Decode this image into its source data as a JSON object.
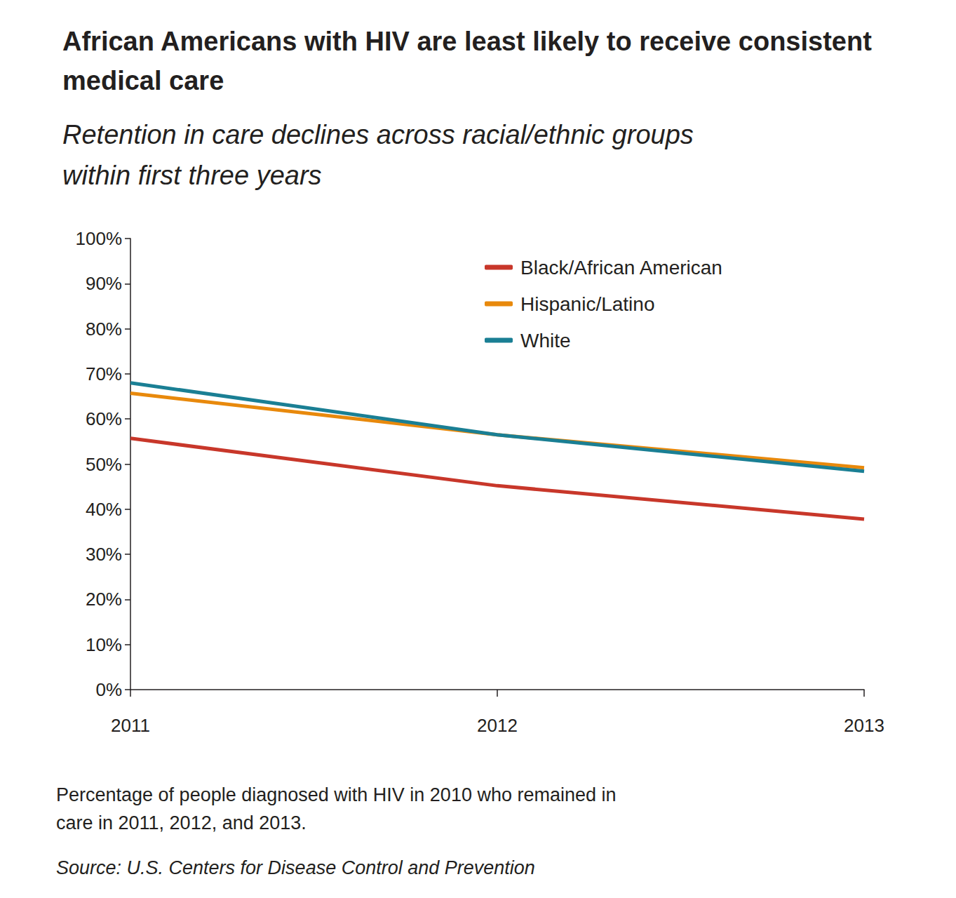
{
  "chart_data": {
    "type": "line",
    "title": "African Americans with HIV are least likely to receive consistent medical care",
    "subtitle": "Retention in care declines across racial/ethnic groups within first three years",
    "caption": "Percentage of people diagnosed with HIV in 2010 who remained in care in 2011, 2012, and 2013.",
    "source": "Source: U.S. Centers for Disease Control and Prevention",
    "categories": [
      "2011",
      "2012",
      "2013"
    ],
    "series": [
      {
        "name": "Black/African American",
        "color": "#c8372a",
        "values": [
          55.7,
          45.2,
          37.8
        ]
      },
      {
        "name": "Hispanic/Latino",
        "color": "#e8890c",
        "values": [
          65.7,
          56.5,
          49.2
        ]
      },
      {
        "name": "White",
        "color": "#1a7f94",
        "values": [
          68.0,
          56.5,
          48.4
        ]
      }
    ],
    "ylim": [
      0,
      100
    ],
    "yticks": [
      {
        "value": 0,
        "label": "0%"
      },
      {
        "value": 10,
        "label": "10%"
      },
      {
        "value": 20,
        "label": "20%"
      },
      {
        "value": 30,
        "label": "30%"
      },
      {
        "value": 40,
        "label": "40%"
      },
      {
        "value": 50,
        "label": "50%"
      },
      {
        "value": 60,
        "label": "60%"
      },
      {
        "value": 70,
        "label": "70%"
      },
      {
        "value": 80,
        "label": "80%"
      },
      {
        "value": 90,
        "label": "90%"
      },
      {
        "value": 100,
        "label": "100%"
      }
    ],
    "grid": false,
    "legend": "upper right"
  }
}
